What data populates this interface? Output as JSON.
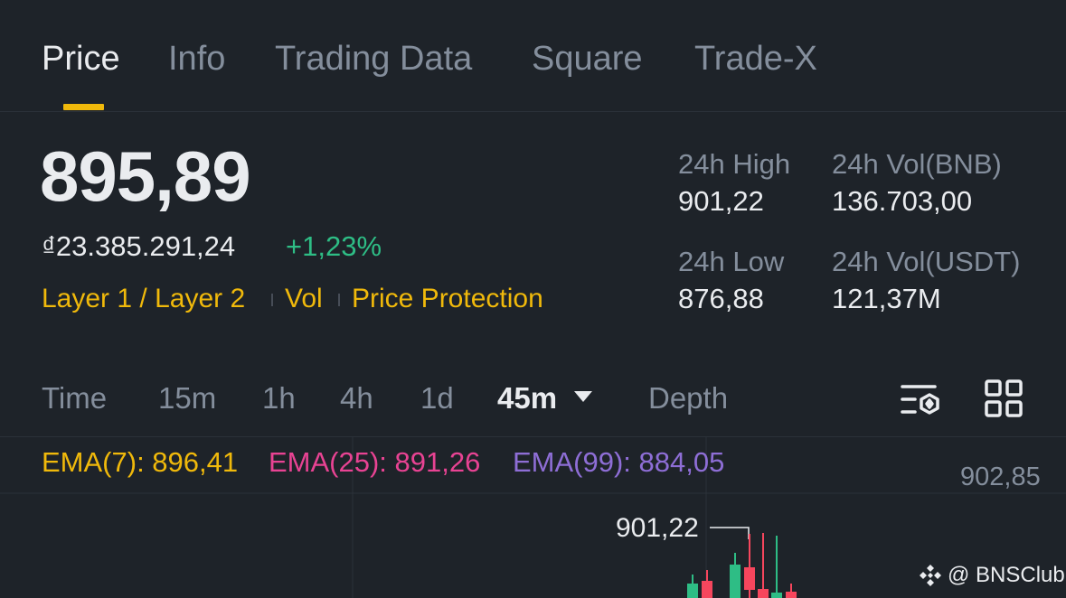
{
  "tabs": [
    {
      "label": "Price",
      "active": true
    },
    {
      "label": "Info",
      "active": false
    },
    {
      "label": "Trading Data",
      "active": false
    },
    {
      "label": "Square",
      "active": false
    },
    {
      "label": "Trade-X",
      "active": false
    }
  ],
  "price": {
    "last": "895,89",
    "fiat": "₫23.385.291,24",
    "change": "+1,23%"
  },
  "tags": [
    "Layer 1 / Layer 2",
    "Vol",
    "Price Protection"
  ],
  "stats": {
    "high_label": "24h High",
    "high_value": "901,22",
    "low_label": "24h Low",
    "low_value": "876,88",
    "vol_base_label": "24h Vol(BNB)",
    "vol_base_value": "136.703,00",
    "vol_quote_label": "24h Vol(USDT)",
    "vol_quote_value": "121,37M"
  },
  "intervals": {
    "items": [
      "Time",
      "15m",
      "1h",
      "4h",
      "1d",
      "45m",
      "Depth"
    ],
    "selected": "45m"
  },
  "indicators": {
    "ema7": "EMA(7): 896,41",
    "ema25": "EMA(25): 891,26",
    "ema99": "EMA(99): 884,05"
  },
  "chart": {
    "axis_top": "902,85",
    "high_marker": "901,22"
  },
  "watermark": "@ BNSClub",
  "colors": {
    "background": "#1e2329",
    "accent": "#f0b90b",
    "up": "#2ebd85",
    "down": "#f6465d",
    "ema7": "#f0b90b",
    "ema25": "#e84393",
    "ema99": "#8e6ed6"
  }
}
